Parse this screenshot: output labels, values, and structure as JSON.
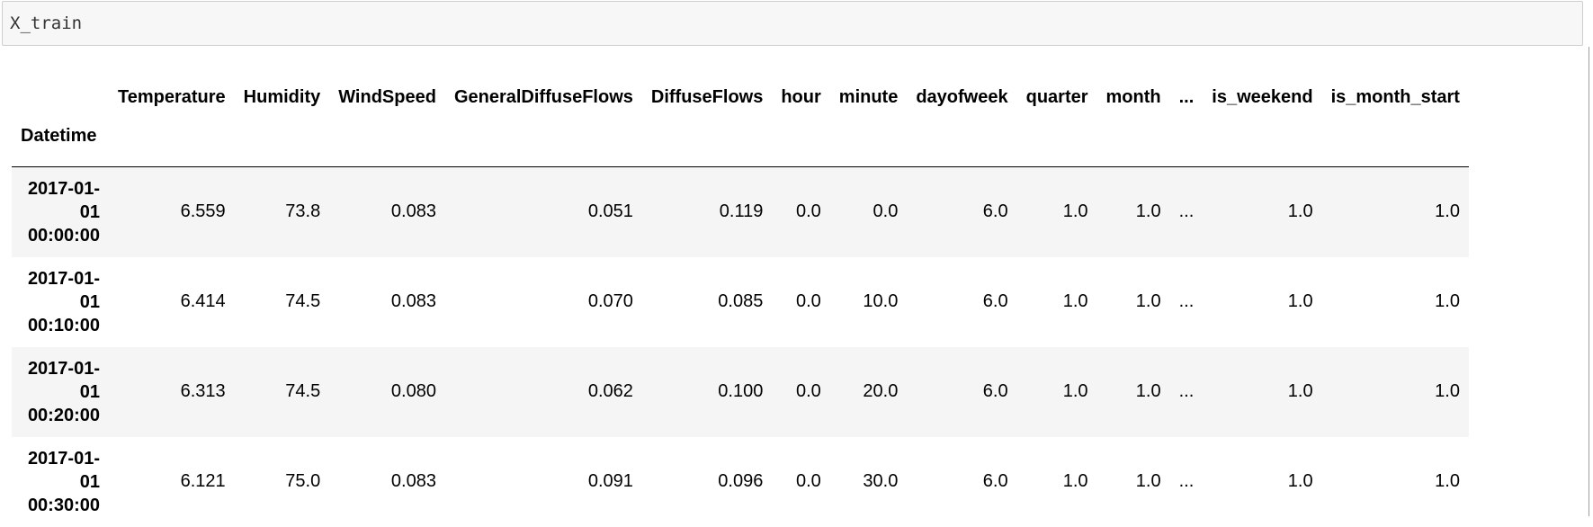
{
  "input_cell": {
    "code": "X_train"
  },
  "dataframe": {
    "index_name": "Datetime",
    "columns": [
      "Temperature",
      "Humidity",
      "WindSpeed",
      "GeneralDiffuseFlows",
      "DiffuseFlows",
      "hour",
      "minute",
      "dayofweek",
      "quarter",
      "month",
      "...",
      "is_weekend",
      "is_month_start"
    ],
    "rows": [
      {
        "index": "2017-01-01 00:00:00",
        "values": [
          "6.559",
          "73.8",
          "0.083",
          "0.051",
          "0.119",
          "0.0",
          "0.0",
          "6.0",
          "1.0",
          "1.0",
          "...",
          "1.0",
          "1.0"
        ]
      },
      {
        "index": "2017-01-01 00:10:00",
        "values": [
          "6.414",
          "74.5",
          "0.083",
          "0.070",
          "0.085",
          "0.0",
          "10.0",
          "6.0",
          "1.0",
          "1.0",
          "...",
          "1.0",
          "1.0"
        ]
      },
      {
        "index": "2017-01-01 00:20:00",
        "values": [
          "6.313",
          "74.5",
          "0.080",
          "0.062",
          "0.100",
          "0.0",
          "20.0",
          "6.0",
          "1.0",
          "1.0",
          "...",
          "1.0",
          "1.0"
        ]
      },
      {
        "index": "2017-01-01 00:30:00",
        "values": [
          "6.121",
          "75.0",
          "0.083",
          "0.091",
          "0.096",
          "0.0",
          "30.0",
          "6.0",
          "1.0",
          "1.0",
          "...",
          "1.0",
          "1.0"
        ]
      }
    ]
  }
}
